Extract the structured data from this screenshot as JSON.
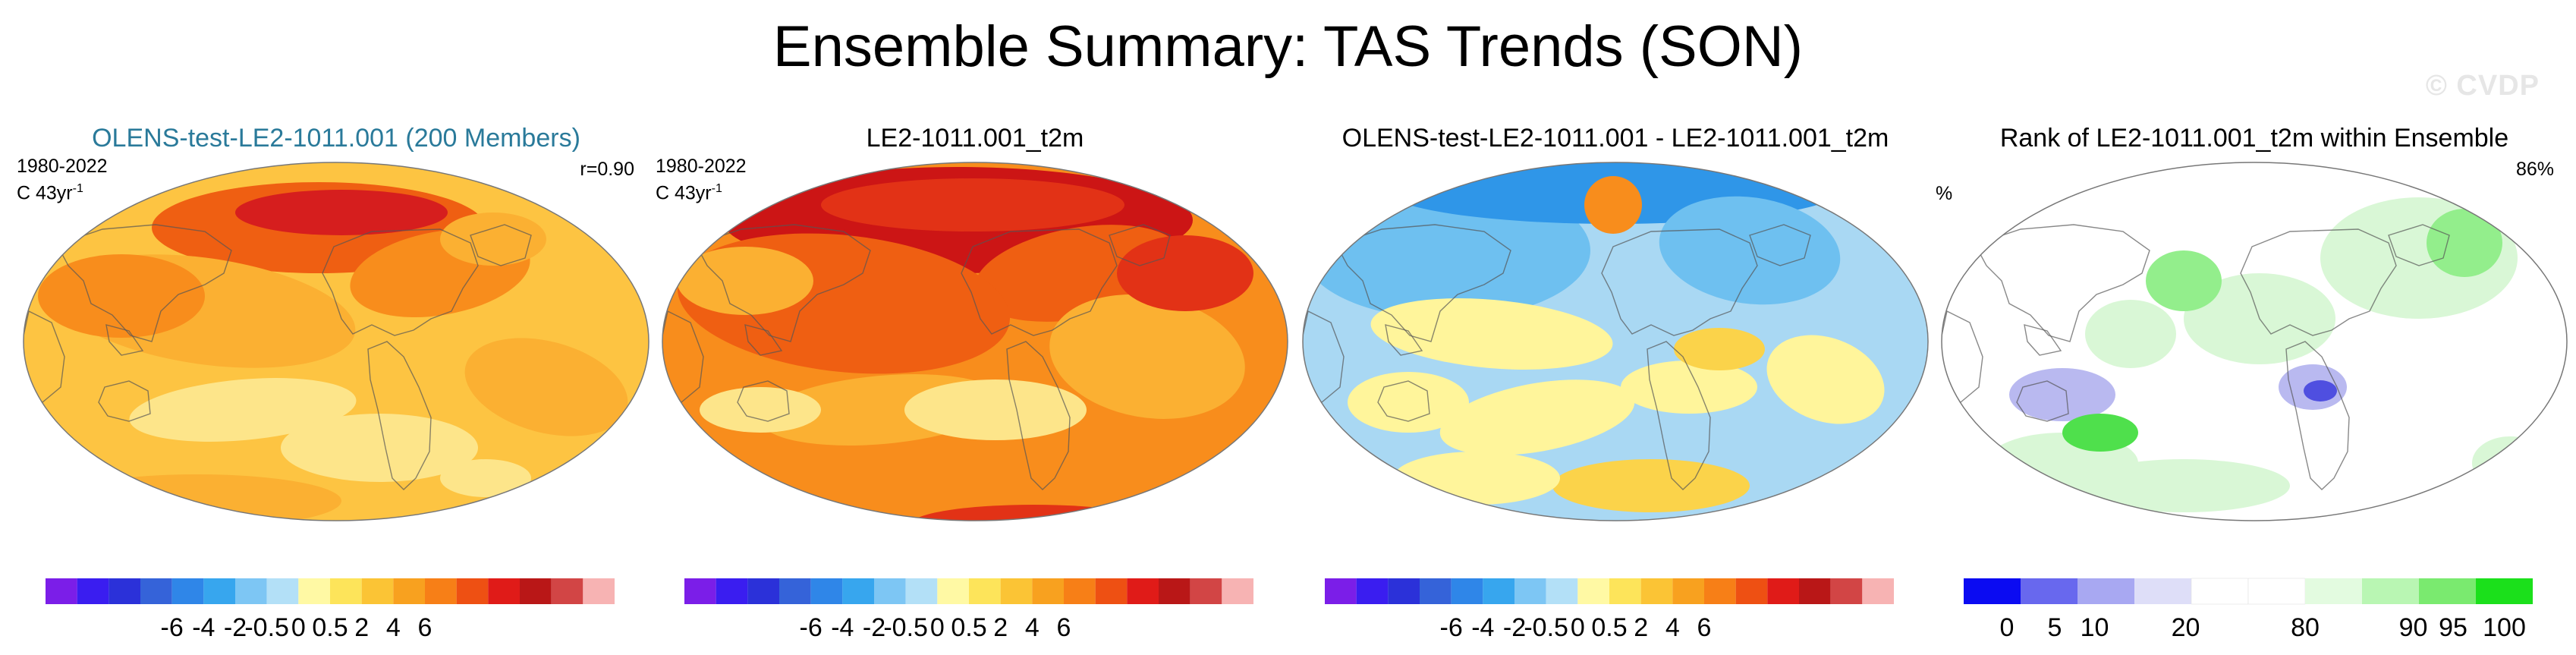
{
  "title": "Ensemble Summary: TAS Trends (SON)",
  "watermark": "© CVDP",
  "panels": [
    {
      "id": "ensemble",
      "title": "OLENS-test-LE2-1011.001 (200 Members)",
      "title_color": "#2a7a9a",
      "period": "1980-2022",
      "units": "C 43yr",
      "units_sup": "-1",
      "right_label": "r=0.90",
      "left_label": "",
      "colors": {
        "base": "#fdc442",
        "c1": "#fbb032",
        "c2": "#f88d1c",
        "c3": "#ef5f12",
        "c4": "#d61e1e",
        "c5": "#fde58a"
      }
    },
    {
      "id": "obs",
      "title": "LE2-1011.001_t2m",
      "title_color": "#000000",
      "period": "1980-2022",
      "units": "C 43yr",
      "units_sup": "-1",
      "right_label": "",
      "left_label": "",
      "colors": {
        "base": "#f88d1c",
        "c1": "#fbb032",
        "c2": "#ef5f12",
        "c3": "#e23216",
        "c4": "#cc1515",
        "c5": "#fde58a"
      }
    },
    {
      "id": "diff",
      "title": "OLENS-test-LE2-1011.001 - LE2-1011.001_t2m",
      "title_color": "#000000",
      "period": "",
      "units": "",
      "units_sup": "",
      "right_label": "",
      "left_label": "",
      "colors": {
        "base": "#a9d8f3",
        "c1": "#6ec0f0",
        "c2": "#2f96e8",
        "c3": "#fff59b",
        "c4": "#fbd34a",
        "c5": "#f88d1c"
      }
    },
    {
      "id": "rank",
      "title": "Rank of LE2-1011.001_t2m within Ensemble",
      "title_color": "#000000",
      "period": "",
      "units": "",
      "units_sup": "",
      "right_label": "86%",
      "left_label": "%",
      "colors": {
        "base": "#ffffff",
        "c1": "#d9f7d6",
        "c2": "#93ee8c",
        "c3": "#4fe04c",
        "c4": "#b9b9f0",
        "c5": "#4f4fe0"
      }
    }
  ],
  "colorbars": {
    "trend": {
      "colors": [
        "#7b1ee8",
        "#3a1df0",
        "#2b31d9",
        "#3563d9",
        "#2f86e8",
        "#37a6ee",
        "#7dc6f4",
        "#b3e0f7",
        "#fff9a4",
        "#fde45a",
        "#fbc435",
        "#f8a11f",
        "#f77f17",
        "#ee5013",
        "#e01b18",
        "#b91717",
        "#d24545",
        "#f7b3b3"
      ],
      "labels": [
        "-6",
        "-4",
        "-2",
        "-0.5",
        "0",
        "0.5",
        "2",
        "4",
        "6"
      ]
    },
    "rank": {
      "colors": [
        "#0b0bf2",
        "#6868ee",
        "#a8a8f2",
        "#dedef8",
        "#ffffff",
        "#ffffff",
        "#e3fbe0",
        "#b9f6b3",
        "#7aea6f",
        "#1be01b"
      ],
      "labels": [
        "0",
        "5",
        "10",
        "20",
        "80",
        "90",
        "95",
        "100"
      ]
    }
  }
}
